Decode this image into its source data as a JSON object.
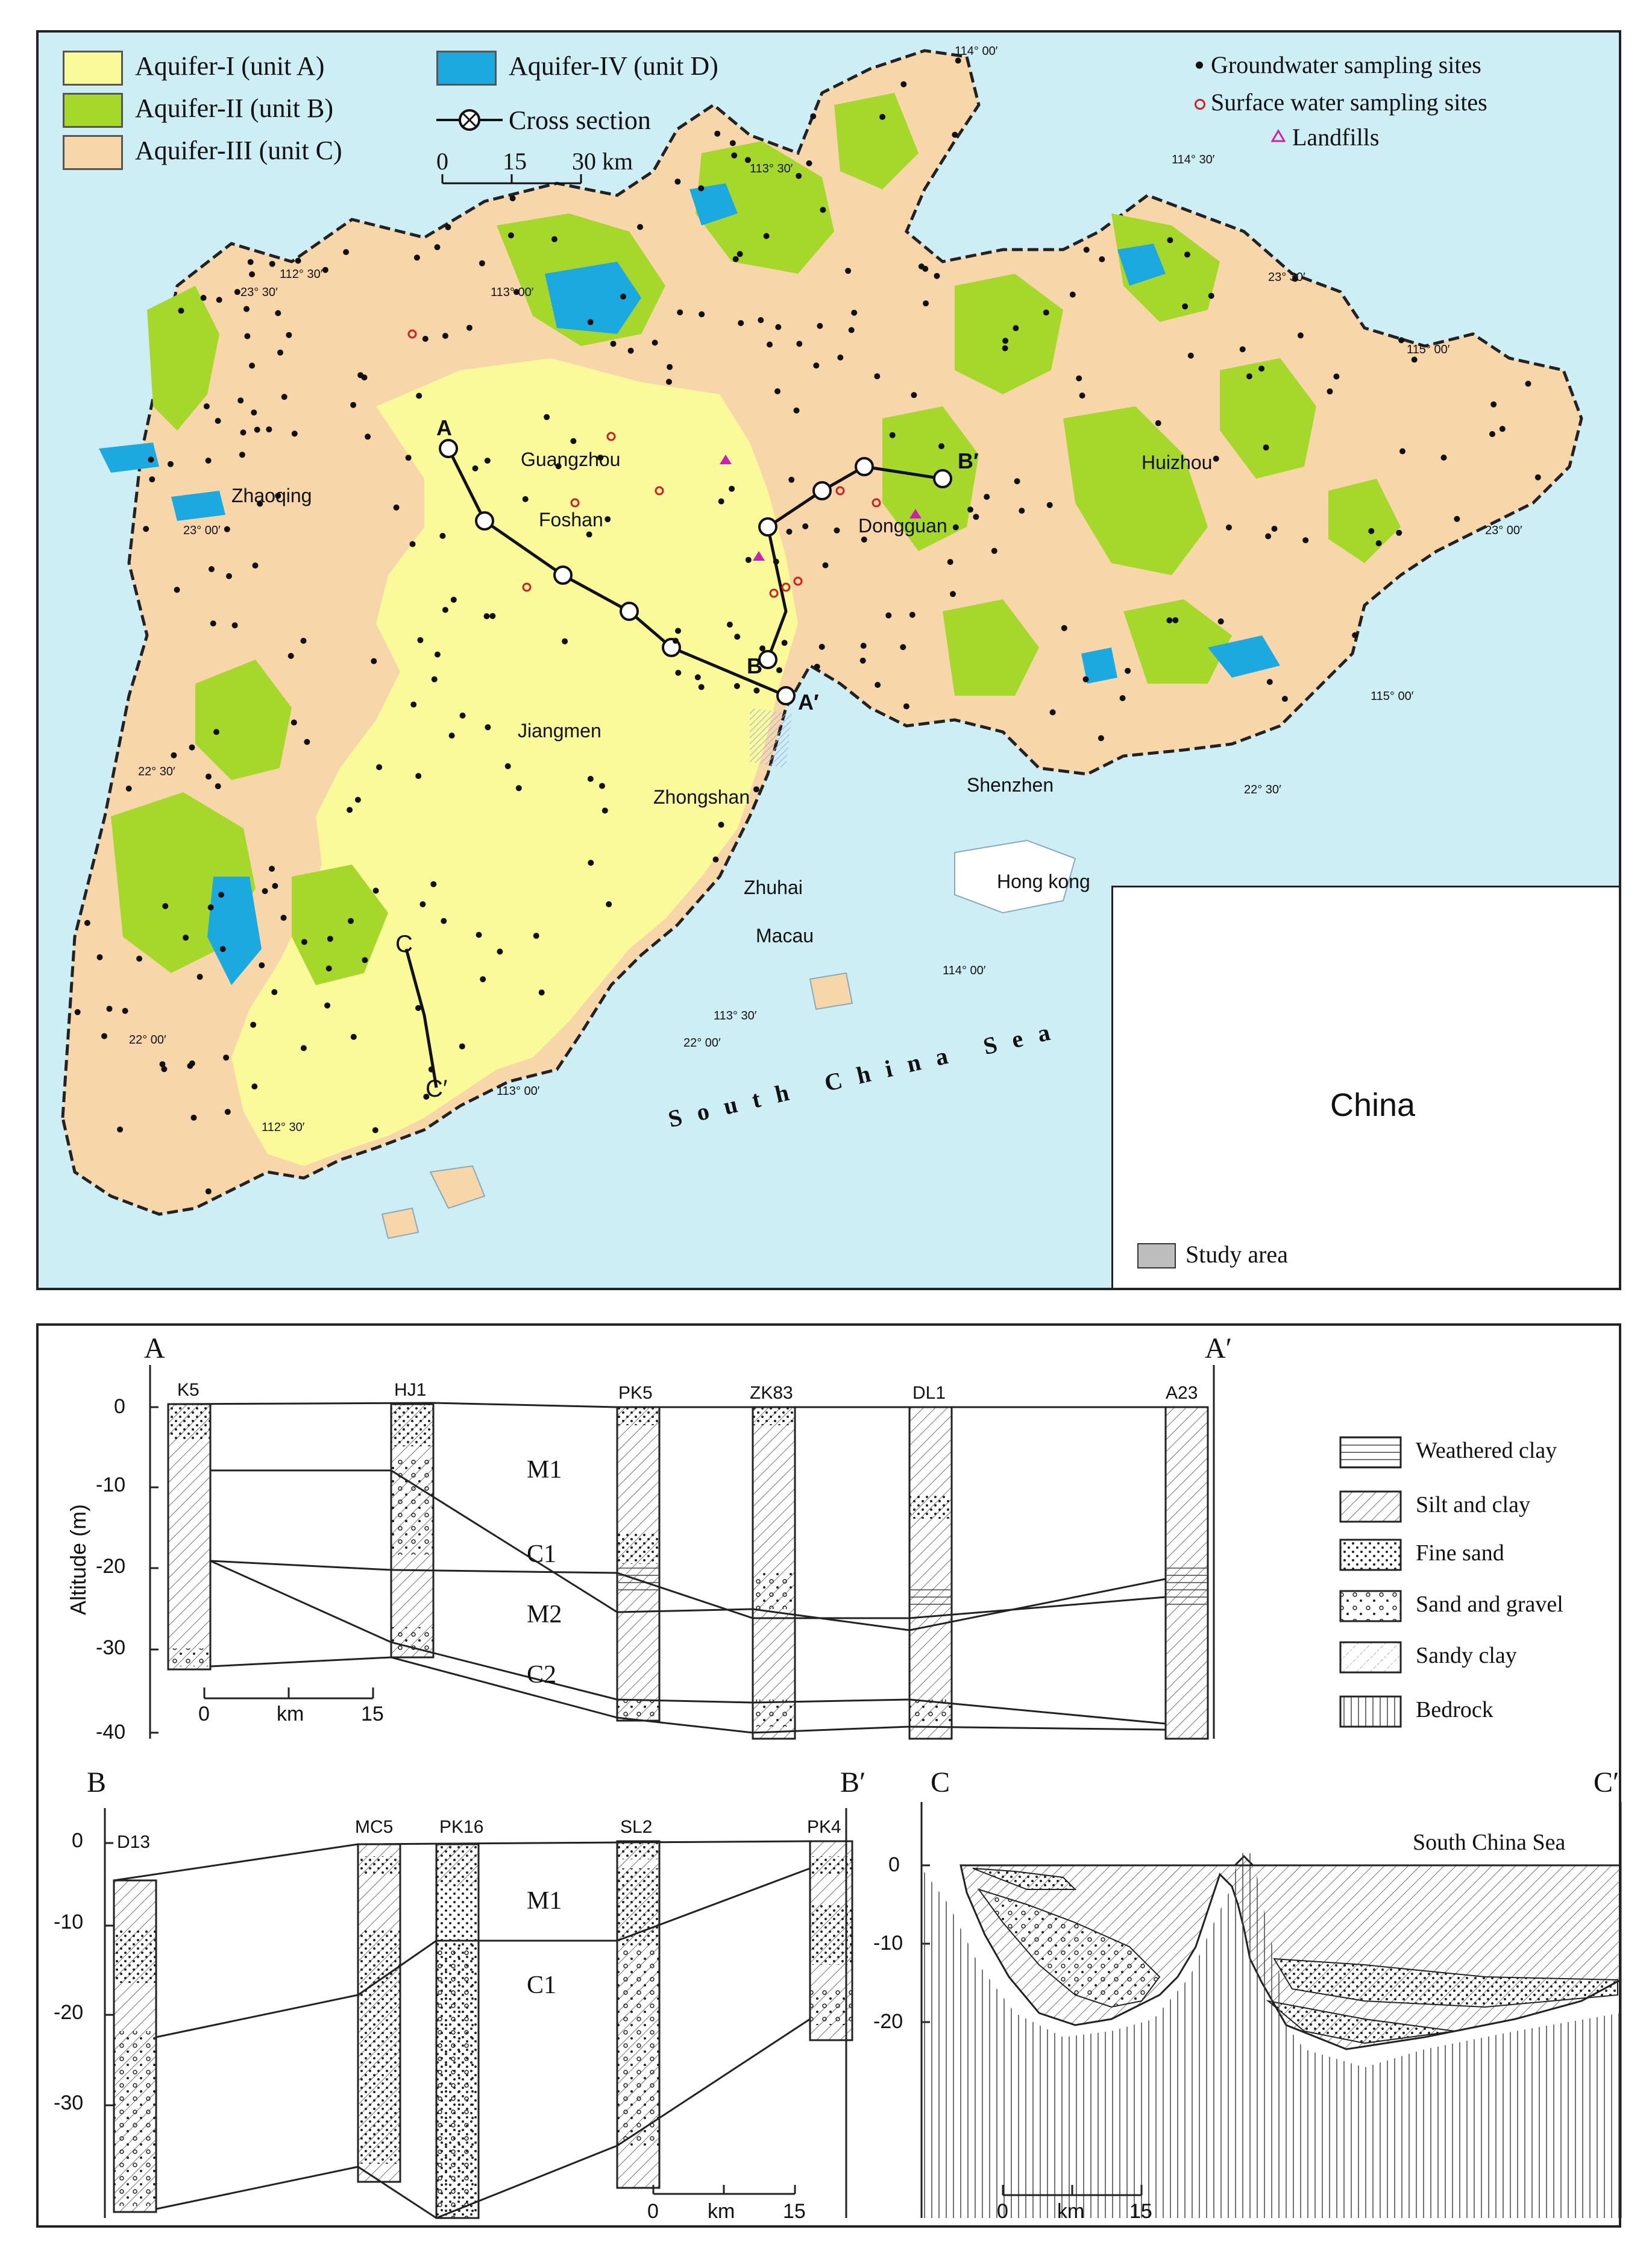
{
  "map": {
    "legend": {
      "aquifer_1": "Aquifer-I (unit A)",
      "aquifer_2": "Aquifer-II (unit B)",
      "aquifer_3": "Aquifer-III (unit C)",
      "aquifer_4": "Aquifer-IV (unit D)",
      "cross_section": "Cross section",
      "groundwater": "Groundwater sampling sites",
      "surface_water": "Surface water sampling sites",
      "landfills": "Landfills"
    },
    "colors": {
      "aquifer_1": "#fafa9b",
      "aquifer_2": "#a6d82c",
      "aquifer_3": "#f7d7aa",
      "aquifer_4": "#1ba9df",
      "sea": "#cdeef5",
      "surface_water": "#cc2222",
      "landfill": "#cc22aa"
    },
    "scale": {
      "t0": "0",
      "t1": "15",
      "t2": "30 km"
    },
    "cities": {
      "guangzhou": "Guangzhou",
      "foshan": "Foshan",
      "zhaoqing": "Zhaoqing",
      "dongguan": "Dongguan",
      "huizhou": "Huizhou",
      "jiangmen": "Jiangmen",
      "zhongshan": "Zhongshan",
      "zhuhai": "Zhuhai",
      "macau": "Macau",
      "shenzhen": "Shenzhen",
      "hongkong": "Hong kong"
    },
    "coords": {
      "c114_00_top": "114° 00′",
      "c113_30_top": "113° 30′",
      "c114_30_top": "114° 30′",
      "c112_30_left": "112° 30′",
      "c23_30_left": "23° 30′",
      "c113_00_top": "113° 00′",
      "c23_30_right": "23° 30′",
      "c115_00_top": "115° 00′",
      "c23_00_left": "23° 00′",
      "c23_00_right": "23° 00′",
      "c115_00_right": "115° 00′",
      "c22_30_left": "22° 30′",
      "c22_30_right": "22° 30′",
      "c114_00_bottom": "114° 00′",
      "c113_30_bottom": "113° 30′",
      "c22_00_left": "22° 00′",
      "c22_00_bottom": "22° 00′",
      "c113_00_bottom": "113° 00′",
      "c112_30_bottom": "112° 30′"
    },
    "section_labels": {
      "a": "A",
      "a_prime": "A′",
      "b": "B",
      "b_prime": "B′",
      "c": "C",
      "c_prime": "C′"
    },
    "sea_label": "South China Sea",
    "inset": {
      "country": "China",
      "legend": "Study area"
    }
  },
  "sections": {
    "a_section": {
      "left_label": "A",
      "right_label": "A′",
      "y_title": "Altitude (m)",
      "y_ticks": [
        "0",
        "-10",
        "-20",
        "-30",
        "-40"
      ],
      "wells": [
        "K5",
        "HJ1",
        "PK5",
        "ZK83",
        "DL1",
        "A23"
      ],
      "units": [
        "M1",
        "C1",
        "M2",
        "C2"
      ],
      "scale": {
        "t0": "0",
        "unit": "km",
        "t1": "15"
      }
    },
    "b_section": {
      "left_label": "B",
      "right_label": "B′",
      "y_ticks": [
        "0",
        "-10",
        "-20",
        "-30"
      ],
      "wells": [
        "D13",
        "MC5",
        "PK16",
        "SL2",
        "PK4"
      ],
      "units": [
        "M1",
        "C1"
      ],
      "scale": {
        "t0": "0",
        "unit": "km",
        "t1": "15"
      }
    },
    "c_section": {
      "left_label": "C",
      "right_label": "C′",
      "y_ticks": [
        "0",
        "-10",
        "-20"
      ],
      "sea_label": "South China Sea",
      "scale": {
        "t0": "0",
        "unit": "km",
        "t1": "15"
      }
    },
    "legend": {
      "weathered_clay": "Weathered clay",
      "silt_clay": "Silt and clay",
      "fine_sand": "Fine sand",
      "sand_gravel": "Sand and gravel",
      "sandy_clay": "Sandy clay",
      "bedrock": "Bedrock"
    }
  }
}
